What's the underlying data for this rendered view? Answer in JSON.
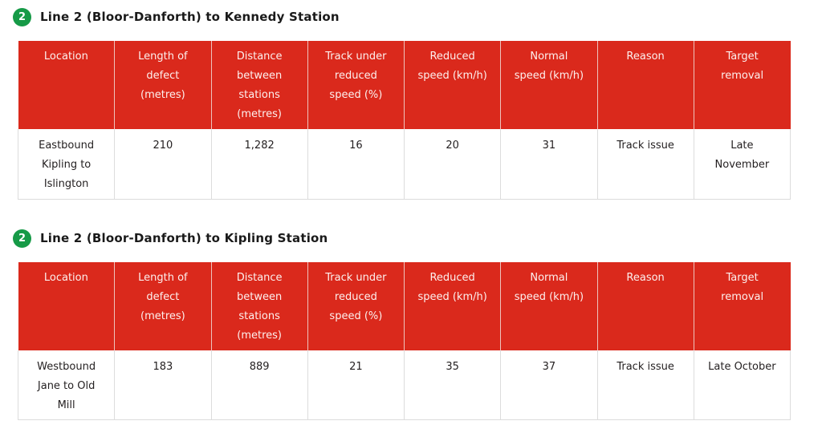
{
  "colors": {
    "header_bg": "#da291c",
    "header_text": "#fdf0ee",
    "body_text": "#231f20",
    "table_border": "#dcdcdc",
    "badge_bg": "#169a47",
    "badge_text": "#ffffff",
    "title_text": "#1a1a1a"
  },
  "sections": [
    {
      "badge": "2",
      "title": "Line 2 (Bloor-Danforth) to Kennedy Station",
      "table": {
        "columns": [
          "Location",
          "Length of\ndefect\n(metres)",
          "Distance\nbetween\nstations\n(metres)",
          "Track under\nreduced\nspeed (%)",
          "Reduced\nspeed (km/h)",
          "Normal\nspeed (km/h)",
          "Reason",
          "Target\nremoval"
        ],
        "rows": [
          [
            "Eastbound\nKipling to\nIslington",
            "210",
            "1,282",
            "16",
            "20",
            "31",
            "Track issue",
            "Late\nNovember"
          ]
        ]
      }
    },
    {
      "badge": "2",
      "title": "Line 2 (Bloor-Danforth) to Kipling Station",
      "table": {
        "columns": [
          "Location",
          "Length of\ndefect\n(metres)",
          "Distance\nbetween\nstations\n(metres)",
          "Track under\nreduced\nspeed (%)",
          "Reduced\nspeed (km/h)",
          "Normal\nspeed (km/h)",
          "Reason",
          "Target\nremoval"
        ],
        "rows": [
          [
            "Westbound\nJane to Old\nMill",
            "183",
            "889",
            "21",
            "35",
            "37",
            "Track issue",
            "Late October"
          ]
        ]
      }
    }
  ]
}
